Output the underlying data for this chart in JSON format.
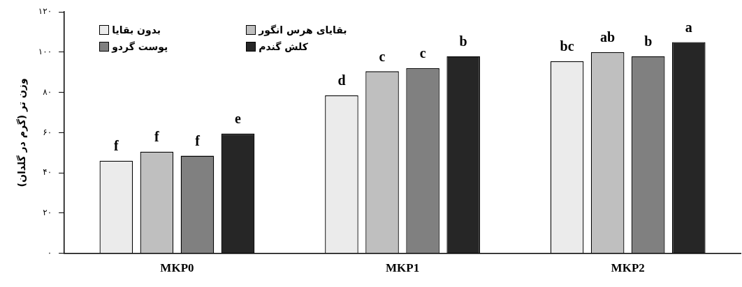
{
  "chart_data": {
    "type": "bar",
    "ylabel": "وزن تر (گرم در گلدان)",
    "categories": [
      "MKP0",
      "MKP1",
      "MKP2"
    ],
    "series": [
      {
        "name": "بدون بقایا",
        "color": "#ebebeb",
        "values": [
          46,
          78.5,
          95.5
        ],
        "value_labels": [
          "f",
          "d",
          "bc"
        ]
      },
      {
        "name": "بقایای هرس انگور",
        "color": "#bfbfbf",
        "values": [
          50.5,
          90.5,
          100
        ],
        "value_labels": [
          "f",
          "c",
          "ab"
        ]
      },
      {
        "name": "پوست گردو",
        "color": "#808080",
        "values": [
          48.5,
          92,
          98
        ],
        "value_labels": [
          "f",
          "c",
          "b"
        ]
      },
      {
        "name": "کلش گندم",
        "color": "#262626",
        "values": [
          59.5,
          98,
          105
        ],
        "value_labels": [
          "e",
          "b",
          "a"
        ]
      }
    ],
    "ylim": [
      0,
      120
    ],
    "yticks": [
      {
        "value": 0,
        "label": "۰"
      },
      {
        "value": 20,
        "label": "۲۰"
      },
      {
        "value": 40,
        "label": "۴۰"
      },
      {
        "value": 60,
        "label": "۶۰"
      },
      {
        "value": 80,
        "label": "۸۰"
      },
      {
        "value": 100,
        "label": "۱۰۰"
      },
      {
        "value": 120,
        "label": "۱۲۰"
      }
    ],
    "legend": "top left"
  }
}
